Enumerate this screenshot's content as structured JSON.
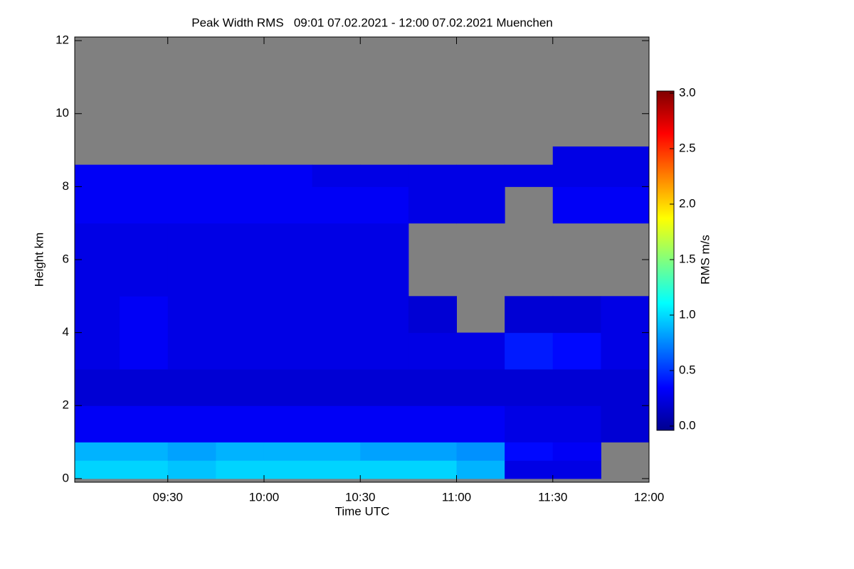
{
  "chart_data": {
    "type": "heatmap",
    "title": "Peak Width RMS   09:01 07.02.2021 - 12:00 07.02.2021 Muenchen",
    "x_label": "Time UTC",
    "y_label": "Height km",
    "colorbar_label": "RMS m/s",
    "x_bins": [
      541,
      555,
      570,
      585,
      600,
      615,
      630,
      645,
      660,
      675,
      690,
      705,
      720
    ],
    "y_bins": [
      0,
      0.5,
      1,
      2,
      3,
      4,
      5,
      6,
      7,
      8,
      8.6,
      9.1
    ],
    "z": [
      [
        1.0,
        1.0,
        0.95,
        1.0,
        1.0,
        1.0,
        1.0,
        1.0,
        0.9,
        0.3,
        0.3,
        null
      ],
      [
        0.9,
        0.9,
        0.85,
        0.9,
        0.9,
        0.9,
        0.85,
        0.85,
        0.8,
        0.4,
        0.35,
        null
      ],
      [
        0.35,
        0.35,
        0.35,
        0.35,
        0.35,
        0.35,
        0.35,
        0.35,
        0.35,
        0.3,
        0.3,
        0.25
      ],
      [
        0.25,
        0.25,
        0.25,
        0.25,
        0.25,
        0.25,
        0.25,
        0.25,
        0.25,
        0.25,
        0.25,
        0.25
      ],
      [
        0.3,
        0.35,
        0.3,
        0.3,
        0.3,
        0.3,
        0.3,
        0.3,
        0.3,
        0.45,
        0.4,
        0.3
      ],
      [
        0.3,
        0.35,
        0.3,
        0.3,
        0.3,
        0.3,
        0.3,
        0.25,
        null,
        0.25,
        0.25,
        0.3
      ],
      [
        0.3,
        0.3,
        0.3,
        0.3,
        0.3,
        0.3,
        0.3,
        null,
        null,
        null,
        null,
        null
      ],
      [
        0.3,
        0.3,
        0.3,
        0.3,
        0.3,
        0.3,
        0.3,
        null,
        null,
        null,
        null,
        null
      ],
      [
        0.35,
        0.35,
        0.35,
        0.35,
        0.35,
        0.35,
        0.35,
        0.3,
        0.3,
        null,
        0.35,
        0.35
      ],
      [
        0.35,
        0.35,
        0.35,
        0.35,
        0.35,
        0.3,
        0.3,
        0.3,
        0.3,
        0.3,
        0.3,
        0.3
      ],
      [
        null,
        null,
        null,
        null,
        null,
        null,
        null,
        null,
        null,
        null,
        0.3,
        0.3
      ]
    ],
    "null_color": "#808080",
    "colormap": "jet",
    "xlim": [
      541,
      720
    ],
    "xticks": [
      {
        "value": 570,
        "label": "09:30"
      },
      {
        "value": 600,
        "label": "10:00"
      },
      {
        "value": 630,
        "label": "10:30"
      },
      {
        "value": 660,
        "label": "11:00"
      },
      {
        "value": 690,
        "label": "11:30"
      },
      {
        "value": 720,
        "label": "12:00"
      }
    ],
    "ylim": [
      -0.1,
      12.1
    ],
    "yticks": [
      0,
      2,
      4,
      6,
      8,
      10,
      12
    ],
    "zlim": [
      0,
      3
    ],
    "zticks": [
      {
        "value": 0,
        "label": "0.0"
      },
      {
        "value": 0.5,
        "label": "0.5"
      },
      {
        "value": 1,
        "label": "1.0"
      },
      {
        "value": 1.5,
        "label": "1.5"
      },
      {
        "value": 2,
        "label": "2.0"
      },
      {
        "value": 2.5,
        "label": "2.5"
      },
      {
        "value": 3,
        "label": "3.0"
      }
    ]
  }
}
